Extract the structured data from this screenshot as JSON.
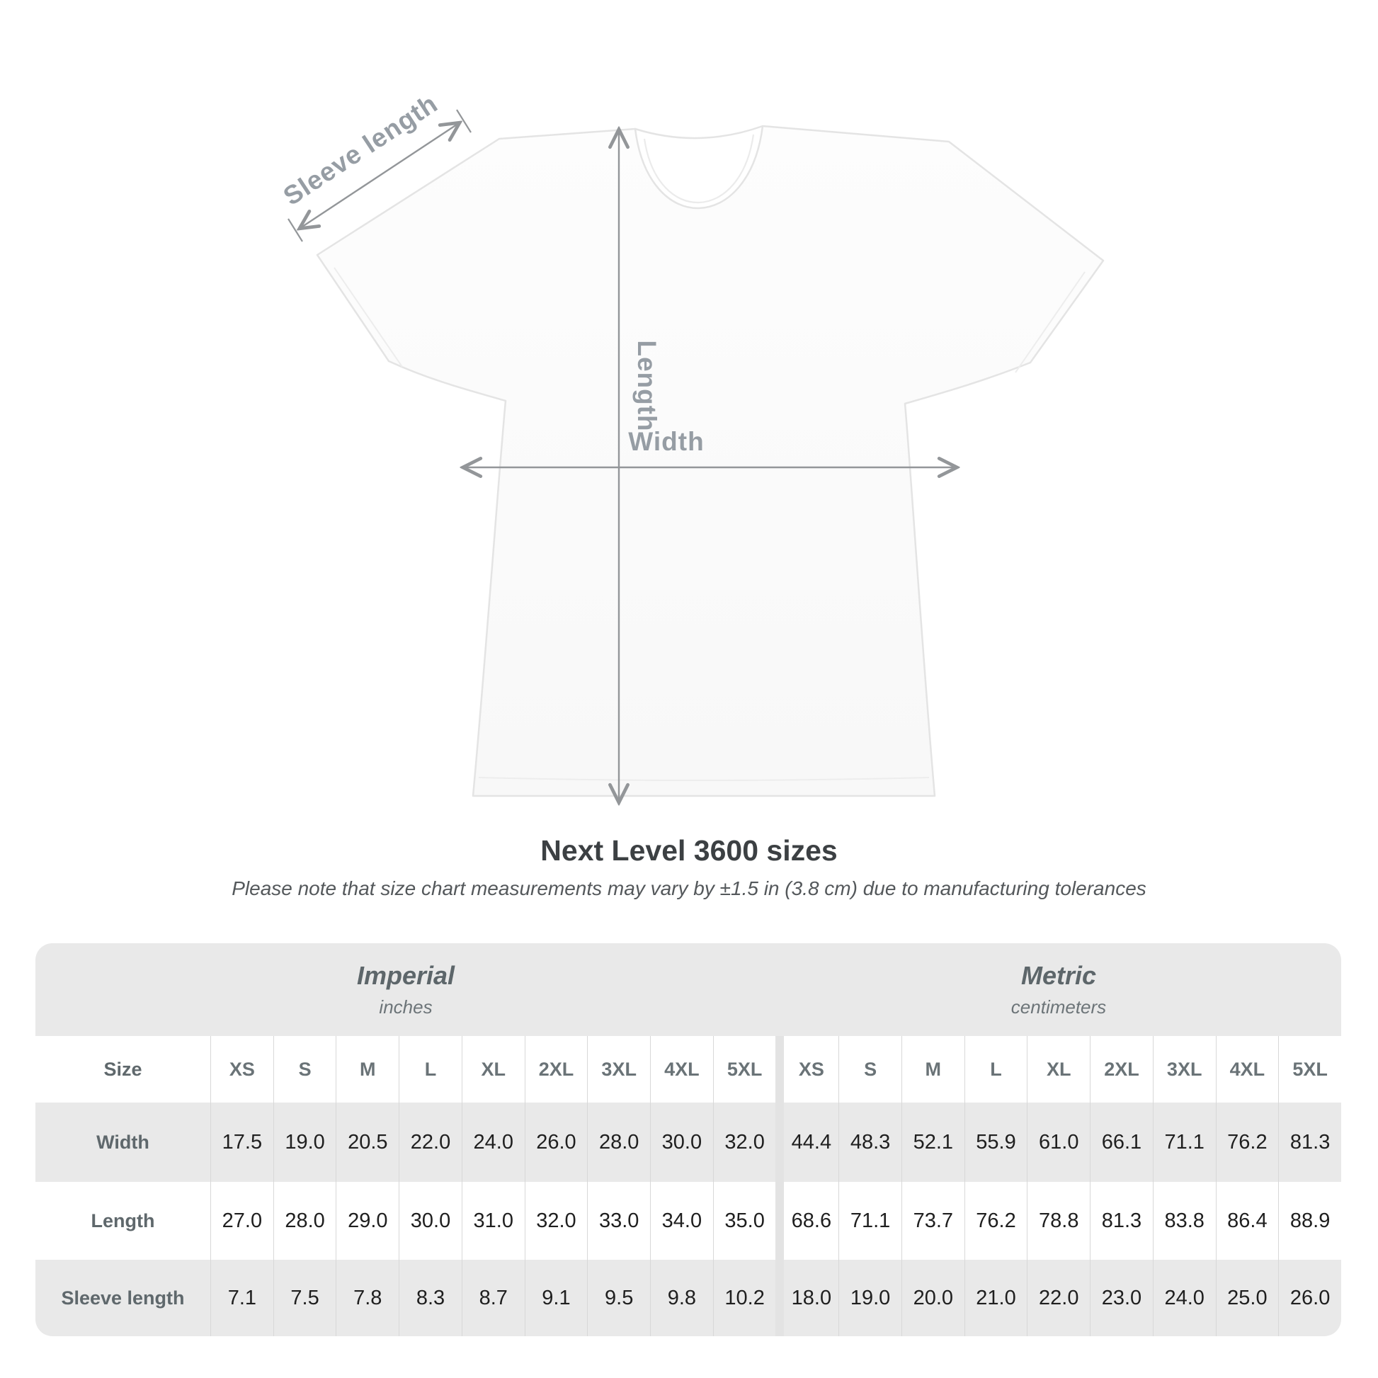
{
  "diagram": {
    "sleeve_label": "Sleeve length",
    "length_label": "Length",
    "width_label": "Width"
  },
  "title": "Next Level 3600 sizes",
  "subtitle": "Please note that size chart measurements may vary by ±1.5 in (3.8 cm) due to manufacturing tolerances",
  "table": {
    "sections": [
      {
        "name": "Imperial",
        "unit": "inches"
      },
      {
        "name": "Metric",
        "unit": "centimeters"
      }
    ],
    "size_column_header": "Size",
    "sizes": [
      "XS",
      "S",
      "M",
      "L",
      "XL",
      "2XL",
      "3XL",
      "4XL",
      "5XL"
    ],
    "rows": [
      {
        "label": "Width",
        "imperial": [
          "17.5",
          "19.0",
          "20.5",
          "22.0",
          "24.0",
          "26.0",
          "28.0",
          "30.0",
          "32.0"
        ],
        "metric": [
          "44.4",
          "48.3",
          "52.1",
          "55.9",
          "61.0",
          "66.1",
          "71.1",
          "76.2",
          "81.3"
        ]
      },
      {
        "label": "Length",
        "imperial": [
          "27.0",
          "28.0",
          "29.0",
          "30.0",
          "31.0",
          "32.0",
          "33.0",
          "34.0",
          "35.0"
        ],
        "metric": [
          "68.6",
          "71.1",
          "73.7",
          "76.2",
          "78.8",
          "81.3",
          "83.8",
          "86.4",
          "88.9"
        ]
      },
      {
        "label": "Sleeve length",
        "imperial": [
          "7.1",
          "7.5",
          "7.8",
          "8.3",
          "8.7",
          "9.1",
          "9.5",
          "9.8",
          "10.2"
        ],
        "metric": [
          "18.0",
          "19.0",
          "20.0",
          "21.0",
          "22.0",
          "23.0",
          "24.0",
          "25.0",
          "26.0"
        ]
      }
    ]
  },
  "colors": {
    "table_bg": "#e9e9e9",
    "row_white": "#ffffff",
    "grid_line": "#d8d8d8",
    "value_text": "#1f1f1f",
    "header_text": "#6a7377",
    "diagram_gray": "#939699"
  }
}
